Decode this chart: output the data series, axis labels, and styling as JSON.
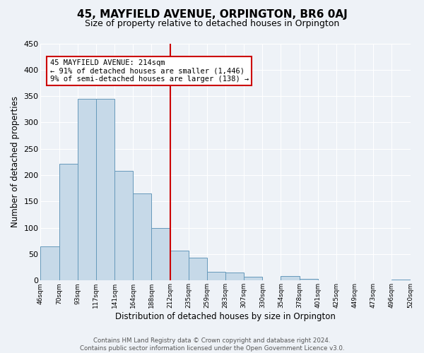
{
  "title": "45, MAYFIELD AVENUE, ORPINGTON, BR6 0AJ",
  "subtitle": "Size of property relative to detached houses in Orpington",
  "xlabel": "Distribution of detached houses by size in Orpington",
  "ylabel": "Number of detached properties",
  "bar_heights": [
    65,
    222,
    345,
    345,
    208,
    165,
    100,
    57,
    43,
    17,
    15,
    7,
    0,
    8,
    3,
    0,
    0,
    0,
    0,
    2
  ],
  "bar_color": "#c6d9e8",
  "bar_edge_color": "#6699bb",
  "vline_bin": 7,
  "vline_color": "#cc0000",
  "annotation_text": "45 MAYFIELD AVENUE: 214sqm\n← 91% of detached houses are smaller (1,446)\n9% of semi-detached houses are larger (138) →",
  "annotation_box_color": "#ffffff",
  "annotation_box_edge_color": "#cc0000",
  "ylim": [
    0,
    450
  ],
  "tick_labels": [
    "46sqm",
    "70sqm",
    "93sqm",
    "117sqm",
    "141sqm",
    "164sqm",
    "188sqm",
    "212sqm",
    "235sqm",
    "259sqm",
    "283sqm",
    "307sqm",
    "330sqm",
    "354sqm",
    "378sqm",
    "401sqm",
    "425sqm",
    "449sqm",
    "473sqm",
    "496sqm",
    "520sqm"
  ],
  "footer_text": "Contains HM Land Registry data © Crown copyright and database right 2024.\nContains public sector information licensed under the Open Government Licence v3.0.",
  "background_color": "#eef2f7",
  "grid_color": "#ffffff",
  "title_fontsize": 11,
  "subtitle_fontsize": 9
}
